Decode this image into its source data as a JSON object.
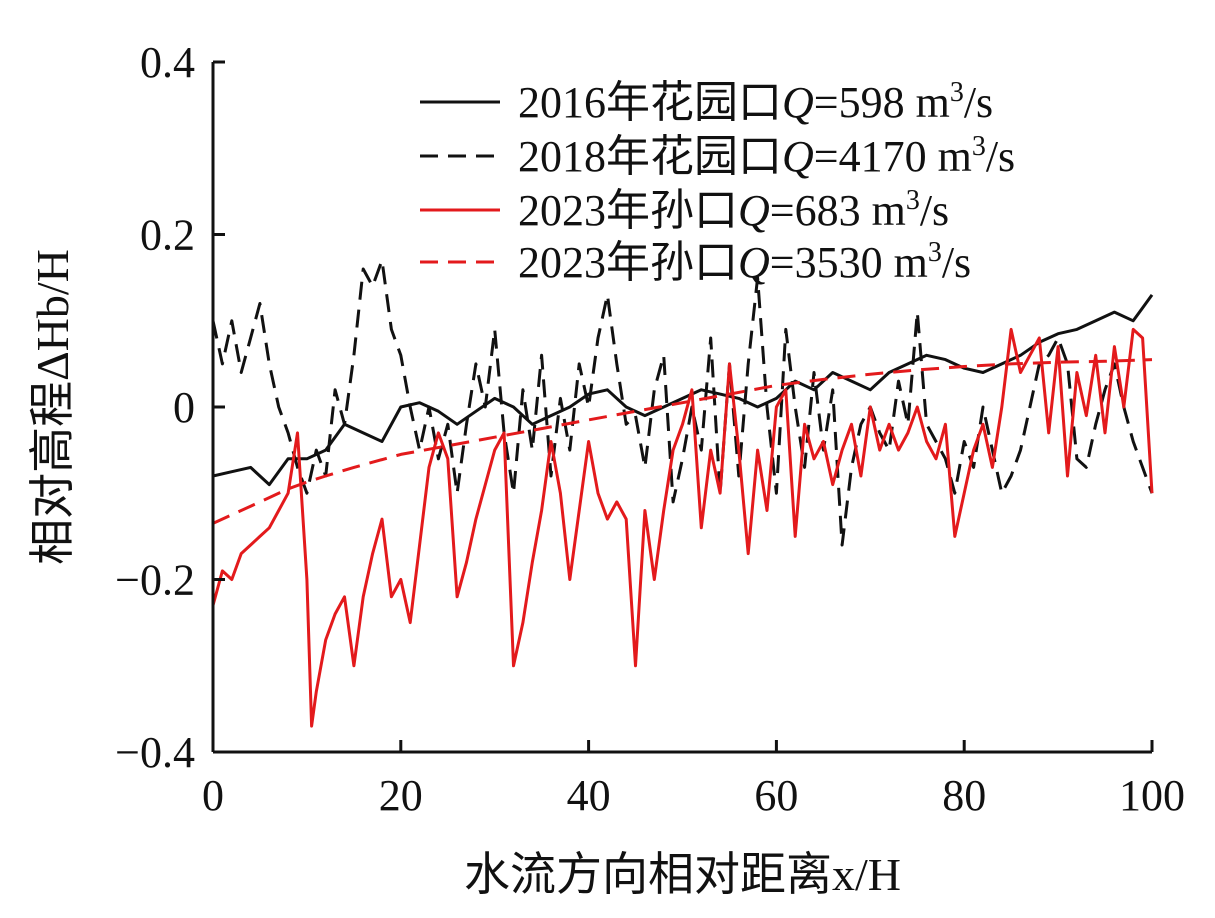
{
  "chart_data": {
    "type": "line",
    "title": "",
    "xlabel": "水流方向相对距离x/H",
    "ylabel": "相对高程ΔHb/H",
    "xlim": [
      0,
      100
    ],
    "ylim": [
      -0.4,
      0.4
    ],
    "x_ticks": [
      0,
      20,
      40,
      60,
      80,
      100
    ],
    "x_tick_labels": [
      "0",
      "20",
      "40",
      "60",
      "80",
      "100"
    ],
    "y_ticks": [
      -0.4,
      -0.2,
      0,
      0.2,
      0.4
    ],
    "y_tick_labels": [
      "−0.4",
      "−0.2",
      "0",
      "0.2",
      "0.4"
    ],
    "grid": false,
    "legend_position": "top-right",
    "series": [
      {
        "name": "2016年花园口Q=598 m3/s",
        "legend": {
          "prefix": "2016年花园口",
          "var": "Q",
          "value": "=598 m",
          "sup": "3",
          "suffix": "/s"
        },
        "color": "#111111",
        "dash": "solid",
        "x": [
          0,
          2,
          4,
          6,
          8,
          10,
          12,
          14,
          16,
          18,
          20,
          22,
          24,
          26,
          28,
          30,
          32,
          34,
          36,
          38,
          40,
          42,
          44,
          46,
          48,
          50,
          52,
          54,
          56,
          58,
          60,
          62,
          64,
          66,
          68,
          70,
          72,
          74,
          76,
          78,
          80,
          82,
          84,
          86,
          88,
          90,
          92,
          94,
          96,
          98,
          100
        ],
        "y": [
          -0.08,
          -0.075,
          -0.07,
          -0.09,
          -0.06,
          -0.06,
          -0.05,
          -0.02,
          -0.03,
          -0.04,
          0.0,
          0.005,
          -0.005,
          -0.02,
          -0.005,
          0.01,
          0.0,
          -0.02,
          -0.01,
          0.0,
          0.015,
          0.02,
          0.0,
          -0.01,
          0.0,
          0.01,
          0.02,
          0.015,
          0.01,
          0.0,
          0.01,
          0.03,
          0.02,
          0.04,
          0.03,
          0.02,
          0.04,
          0.05,
          0.06,
          0.055,
          0.045,
          0.04,
          0.05,
          0.06,
          0.075,
          0.085,
          0.09,
          0.1,
          0.11,
          0.1,
          0.13
        ]
      },
      {
        "name": "2018年花园口Q=4170 m3/s",
        "legend": {
          "prefix": "2018年花园口",
          "var": "Q",
          "value": "=4170 m",
          "sup": "3",
          "suffix": "/s"
        },
        "color": "#111111",
        "dash": "dashed",
        "x": [
          0,
          1,
          2,
          3,
          4,
          5,
          6,
          7,
          8,
          9,
          10,
          11,
          12,
          13,
          14,
          15,
          16,
          17,
          18,
          19,
          20,
          21,
          22,
          23,
          24,
          25,
          26,
          27,
          28,
          29,
          30,
          31,
          32,
          33,
          34,
          35,
          36,
          37,
          38,
          39,
          40,
          41,
          42,
          43,
          44,
          45,
          46,
          47,
          48,
          49,
          50,
          51,
          52,
          53,
          54,
          55,
          56,
          57,
          58,
          59,
          60,
          61,
          62,
          63,
          64,
          65,
          66,
          67,
          68,
          69,
          70,
          71,
          72,
          73,
          74,
          75,
          76,
          77,
          78,
          79,
          80,
          81,
          82,
          83,
          84,
          85,
          86,
          87,
          88,
          89,
          90,
          91,
          92,
          93,
          94,
          95,
          96,
          97,
          98,
          99,
          100
        ],
        "y": [
          0.1,
          0.05,
          0.1,
          0.04,
          0.08,
          0.12,
          0.05,
          0.0,
          -0.03,
          -0.07,
          -0.1,
          -0.05,
          -0.08,
          0.02,
          -0.02,
          0.06,
          0.16,
          0.14,
          0.17,
          0.09,
          0.06,
          0.0,
          -0.05,
          0.0,
          -0.06,
          -0.02,
          -0.1,
          -0.02,
          0.05,
          0.0,
          0.09,
          -0.03,
          -0.1,
          0.02,
          -0.05,
          0.06,
          -0.08,
          0.01,
          -0.05,
          0.05,
          0.0,
          0.08,
          0.13,
          0.05,
          -0.02,
          -0.01,
          -0.07,
          0.02,
          0.06,
          -0.11,
          -0.06,
          0.0,
          -0.05,
          0.08,
          -0.1,
          0.05,
          -0.08,
          0.05,
          0.15,
          0.0,
          -0.1,
          0.09,
          0.0,
          -0.07,
          0.04,
          -0.05,
          0.02,
          -0.16,
          -0.07,
          -0.02,
          0.0,
          -0.03,
          -0.05,
          0.03,
          -0.02,
          0.11,
          -0.02,
          -0.04,
          -0.06,
          -0.1,
          -0.04,
          -0.07,
          0.0,
          -0.05,
          -0.1,
          -0.08,
          -0.05,
          0.0,
          0.05,
          0.06,
          0.08,
          0.05,
          -0.06,
          -0.07,
          -0.02,
          0.02,
          0.05,
          0.0,
          -0.04,
          -0.07,
          -0.1
        ]
      },
      {
        "name": "2023年孙口Q=683 m3/s",
        "legend": {
          "prefix": "2023年孙口",
          "var": "Q",
          "value": "=683 m",
          "sup": "3",
          "suffix": "/s"
        },
        "color": "#e31a1c",
        "dash": "solid",
        "x": [
          0,
          1,
          2,
          3,
          4,
          5,
          6,
          7,
          8,
          9,
          10,
          10.5,
          11,
          12,
          13,
          14,
          15,
          16,
          17,
          18,
          19,
          20,
          21,
          22,
          23,
          24,
          25,
          26,
          27,
          28,
          29,
          30,
          31,
          32,
          33,
          34,
          35,
          36,
          37,
          38,
          39,
          40,
          41,
          42,
          43,
          44,
          45,
          46,
          47,
          48,
          49,
          50,
          51,
          52,
          53,
          54,
          55,
          56,
          57,
          58,
          59,
          60,
          61,
          62,
          63,
          64,
          65,
          66,
          67,
          68,
          69,
          70,
          71,
          72,
          73,
          74,
          75,
          76,
          77,
          78,
          79,
          80,
          81,
          82,
          83,
          84,
          85,
          86,
          87,
          88,
          89,
          90,
          91,
          92,
          93,
          94,
          95,
          96,
          97,
          98,
          99,
          100
        ],
        "y": [
          -0.23,
          -0.19,
          -0.2,
          -0.17,
          -0.16,
          -0.15,
          -0.14,
          -0.12,
          -0.1,
          -0.03,
          -0.2,
          -0.37,
          -0.33,
          -0.27,
          -0.24,
          -0.22,
          -0.3,
          -0.22,
          -0.17,
          -0.13,
          -0.22,
          -0.2,
          -0.25,
          -0.16,
          -0.07,
          -0.03,
          -0.06,
          -0.22,
          -0.18,
          -0.13,
          -0.09,
          -0.05,
          -0.03,
          -0.3,
          -0.25,
          -0.18,
          -0.12,
          -0.04,
          -0.1,
          -0.2,
          -0.12,
          -0.04,
          -0.1,
          -0.13,
          -0.11,
          -0.13,
          -0.3,
          -0.12,
          -0.2,
          -0.12,
          -0.05,
          -0.02,
          0.02,
          -0.14,
          -0.05,
          -0.1,
          0.05,
          -0.05,
          -0.17,
          -0.05,
          -0.12,
          0.0,
          0.02,
          -0.15,
          -0.02,
          -0.06,
          -0.04,
          -0.09,
          -0.05,
          -0.02,
          -0.08,
          0.0,
          -0.05,
          -0.02,
          -0.05,
          -0.03,
          0.0,
          -0.04,
          -0.06,
          -0.02,
          -0.15,
          -0.1,
          -0.05,
          -0.02,
          -0.07,
          0.0,
          0.09,
          0.04,
          0.06,
          0.08,
          -0.03,
          0.07,
          -0.08,
          0.04,
          -0.01,
          0.06,
          -0.03,
          0.07,
          0.0,
          0.09,
          0.08,
          -0.1
        ]
      },
      {
        "name": "2023年孙口Q=3530 m3/s",
        "legend": {
          "prefix": "2023年孙口",
          "var": "Q",
          "value": "=3530 m",
          "sup": "3",
          "suffix": "/s"
        },
        "color": "#e31a1c",
        "dash": "dashed",
        "x": [
          0,
          2,
          4,
          6,
          8,
          10,
          12,
          15,
          20,
          25,
          30,
          35,
          40,
          45,
          50,
          55,
          60,
          65,
          70,
          75,
          80,
          85,
          90,
          95,
          100
        ],
        "y": [
          -0.135,
          -0.125,
          -0.115,
          -0.105,
          -0.095,
          -0.087,
          -0.08,
          -0.07,
          -0.055,
          -0.045,
          -0.035,
          -0.025,
          -0.015,
          -0.005,
          0.005,
          0.015,
          0.025,
          0.032,
          0.038,
          0.043,
          0.047,
          0.05,
          0.052,
          0.053,
          0.055
        ]
      }
    ]
  }
}
